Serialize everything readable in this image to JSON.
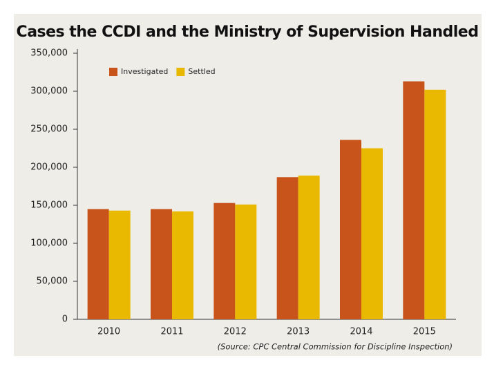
{
  "chart_data": {
    "type": "bar",
    "title": "Cases the CCDI and the Ministry of Supervision Handled",
    "source": "(Source: CPC Central Commission for Discipline Inspection)",
    "categories": [
      "2010",
      "2011",
      "2012",
      "2013",
      "2014",
      "2015"
    ],
    "series": [
      {
        "name": "Investigated",
        "color": "#c8541c",
        "values": [
          145000,
          145000,
          153000,
          187000,
          236000,
          313000
        ]
      },
      {
        "name": "Settled",
        "color": "#e9b800",
        "values": [
          143000,
          142000,
          151000,
          189000,
          225000,
          302000
        ]
      }
    ],
    "ylim": [
      0,
      350000
    ],
    "yticks": [
      0,
      {
        "value": 50000,
        "label": "50,000"
      },
      {
        "value": 100000,
        "label": "100,000"
      },
      {
        "value": 150000,
        "label": "150,000"
      },
      {
        "value": 200000,
        "label": "200,000"
      },
      {
        "value": 250000,
        "label": "250,000"
      },
      {
        "value": 300000,
        "label": "300,000"
      },
      {
        "value": 350000,
        "label": "350,000"
      }
    ],
    "legend": "top-left",
    "grid": false
  }
}
